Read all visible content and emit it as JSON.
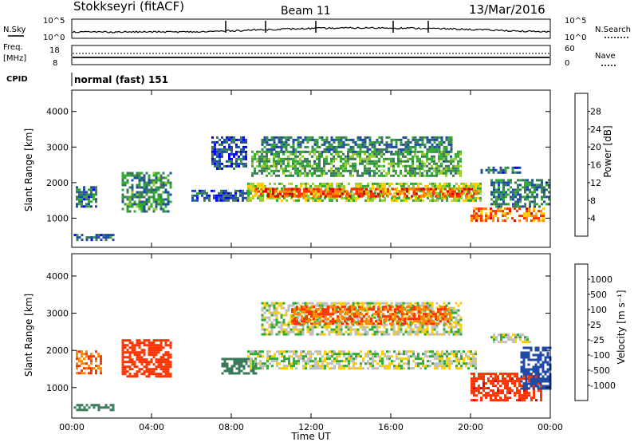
{
  "header": {
    "station": "Stokkseyri (fitACF)",
    "beam": "Beam 11",
    "date": "13/Mar/2016"
  },
  "nsky_panel": {
    "left_label": "N.Sky",
    "right_label": "N.Search",
    "left_ticks": [
      "10^5",
      "10^0"
    ],
    "right_ticks": [
      "10^5",
      "10^0"
    ]
  },
  "freq_panel": {
    "left_label_1": "Freq.",
    "left_label_2": "[MHz]",
    "right_label": "Nave",
    "left_ticks": [
      "18",
      "8"
    ],
    "right_ticks": [
      "60",
      "0"
    ]
  },
  "cpid_panel": {
    "label": "CPID",
    "value": "normal (fast) 151"
  },
  "colors": {
    "scale": [
      "#0000ff",
      "#1f4aa8",
      "#3a7a5a",
      "#33aa33",
      "#99cc33",
      "#ffcc00",
      "#ff8800",
      "#ff3300",
      "#dd0000"
    ],
    "ground_scatter": "#bebebe"
  },
  "chart_data": [
    {
      "type": "heatmap",
      "name": "power",
      "xlabel": "Time UT",
      "ylabel": "Slant Range [km]",
      "x_ticks": [
        "00:00",
        "04:00",
        "08:00",
        "12:00",
        "16:00",
        "20:00",
        "00:00"
      ],
      "x_range_hours": [
        0,
        24
      ],
      "y_ticks": [
        1000,
        2000,
        3000,
        4000
      ],
      "ylim": [
        180,
        4600
      ],
      "colorbar": {
        "label": "Power [dB]",
        "ticks": [
          4,
          8,
          12,
          16,
          20,
          24,
          28
        ],
        "range": [
          0,
          32
        ]
      },
      "regions": [
        {
          "t0": 0.2,
          "t1": 1.2,
          "r0": 1300,
          "r1": 1900,
          "v": 8
        },
        {
          "t0": 0.1,
          "t1": 2.1,
          "r0": 420,
          "r1": 560,
          "v": 6
        },
        {
          "t0": 2.5,
          "t1": 5.0,
          "r0": 1200,
          "r1": 2300,
          "v": 10
        },
        {
          "t0": 6.0,
          "t1": 9.0,
          "r0": 1500,
          "r1": 1800,
          "v": 6
        },
        {
          "t0": 7.0,
          "t1": 8.8,
          "r0": 2400,
          "r1": 3300,
          "v": 6
        },
        {
          "t0": 8.8,
          "t1": 20.5,
          "r0": 1500,
          "r1": 2000,
          "v": 16
        },
        {
          "t0": 9.2,
          "t1": 20.3,
          "r0": 1600,
          "r1": 1850,
          "v": 26
        },
        {
          "t0": 9.0,
          "t1": 19.5,
          "r0": 2200,
          "r1": 2900,
          "v": 12
        },
        {
          "t0": 9.5,
          "t1": 19.0,
          "r0": 2850,
          "r1": 3300,
          "v": 9
        },
        {
          "t0": 20.0,
          "t1": 23.7,
          "r0": 900,
          "r1": 1300,
          "v": 24
        },
        {
          "t0": 21.0,
          "t1": 24.0,
          "r0": 1300,
          "r1": 2100,
          "v": 9
        },
        {
          "t0": 20.5,
          "t1": 22.5,
          "r0": 2250,
          "r1": 2450,
          "v": 8
        }
      ]
    },
    {
      "type": "heatmap",
      "name": "velocity",
      "xlabel": "Time UT",
      "ylabel": "Slant Range [km]",
      "x_ticks": [
        "00:00",
        "04:00",
        "08:00",
        "12:00",
        "16:00",
        "20:00",
        "00:00"
      ],
      "x_range_hours": [
        0,
        24
      ],
      "y_ticks": [
        1000,
        2000,
        3000,
        4000
      ],
      "ylim": [
        180,
        4600
      ],
      "colorbar": {
        "label": "Velocity [m s⁻¹]",
        "ticks": [
          1000,
          500,
          100,
          25,
          -25,
          -100,
          -500,
          -1000
        ]
      },
      "regions": [
        {
          "t0": 0.2,
          "t1": 1.5,
          "r0": 1400,
          "r1": 2000,
          "v": -300
        },
        {
          "t0": 0.1,
          "t1": 2.1,
          "r0": 420,
          "r1": 560,
          "v": 150
        },
        {
          "t0": 2.5,
          "t1": 5.0,
          "r0": 1300,
          "r1": 2300,
          "v": -400
        },
        {
          "t0": 7.5,
          "t1": 9.2,
          "r0": 1400,
          "r1": 1800,
          "v": 200
        },
        {
          "t0": 8.8,
          "t1": 20.3,
          "r0": 1500,
          "r1": 2000,
          "v": 0
        },
        {
          "t0": 9.5,
          "t1": 19.5,
          "r0": 2400,
          "r1": 3300,
          "v": 0
        },
        {
          "t0": 11.0,
          "t1": 19.0,
          "r0": 2700,
          "r1": 3200,
          "v": -300
        },
        {
          "t0": 20.0,
          "t1": 23.5,
          "r0": 650,
          "r1": 1400,
          "v": -700
        },
        {
          "t0": 22.5,
          "t1": 24.0,
          "r0": 1000,
          "r1": 2100,
          "v": 400
        },
        {
          "t0": 21.0,
          "t1": 23.0,
          "r0": 2250,
          "r1": 2450,
          "v": 0
        }
      ]
    }
  ]
}
